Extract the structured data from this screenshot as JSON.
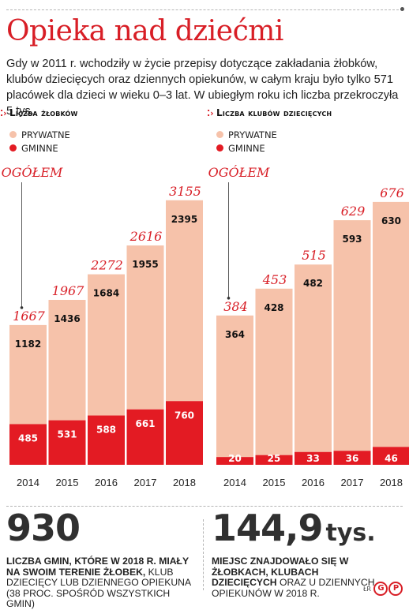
{
  "header": {
    "title": "Opieka nad dziećmi",
    "intro": "Gdy w 2011 r. wchodziły w życie przepisy dotyczące zakładania żłobków, klubów dziecięcych oraz dziennych opiekunów, w całym kraju było tylko 571 placówek dla dzieci w wieku 0–3 lat. W ubiegłym roku ich liczba przekroczyła 5 tys."
  },
  "colors": {
    "accent": "#d81e26",
    "private": "#f6c2aa",
    "public": "#e31b23",
    "total_text": "#d81e26"
  },
  "chart_data": [
    {
      "type": "bar",
      "title": "Liczba żłobków",
      "categories": [
        "2014",
        "2015",
        "2016",
        "2017",
        "2018"
      ],
      "series": [
        {
          "name": "PRYWATNE",
          "values": [
            1182,
            1436,
            1684,
            1955,
            2395
          ]
        },
        {
          "name": "GMINNE",
          "values": [
            485,
            531,
            588,
            661,
            760
          ]
        }
      ],
      "totals_label": "OGÓŁEM",
      "totals": [
        1667,
        1967,
        2272,
        2616,
        3155
      ],
      "stacked": true,
      "ylim": [
        0,
        3200
      ],
      "grid": false,
      "legend": "top-left"
    },
    {
      "type": "bar",
      "title": "Liczba klubów dziecięcych",
      "categories": [
        "2014",
        "2015",
        "2016",
        "2017",
        "2018"
      ],
      "series": [
        {
          "name": "PRYWATNE",
          "values": [
            364,
            428,
            482,
            593,
            630
          ]
        },
        {
          "name": "GMINNE",
          "values": [
            20,
            25,
            33,
            36,
            46
          ]
        }
      ],
      "totals_label": "OGÓŁEM",
      "totals": [
        384,
        453,
        515,
        629,
        676
      ],
      "stacked": true,
      "ylim": [
        0,
        690
      ],
      "grid": false,
      "legend": "top-left"
    }
  ],
  "stats": {
    "left": {
      "number": "930",
      "text_bold": "LICZBA GMIN, KTÓRE W 2018 R. MIAŁY NA SWOIM TERENIE ŻŁOBEK,",
      "text_regular": "KLUB DZIECIĘCY LUB DZIENNEGO OPIEKUNA (38 PROC. SPOŚRÓD WSZYSTKICH GMIN)"
    },
    "right": {
      "number": "144,9",
      "unit": "tys.",
      "text_bold": "MIEJSC ZNAJDOWAŁO SIĘ W ŻŁOBKACH, KLUBACH DZIECIĘCYCH",
      "text_regular": "ORAZ U DZIENNYCH OPIEKUNÓW W 2018 R."
    }
  },
  "footer": {
    "credit": "ŁR",
    "logo": "GP"
  }
}
